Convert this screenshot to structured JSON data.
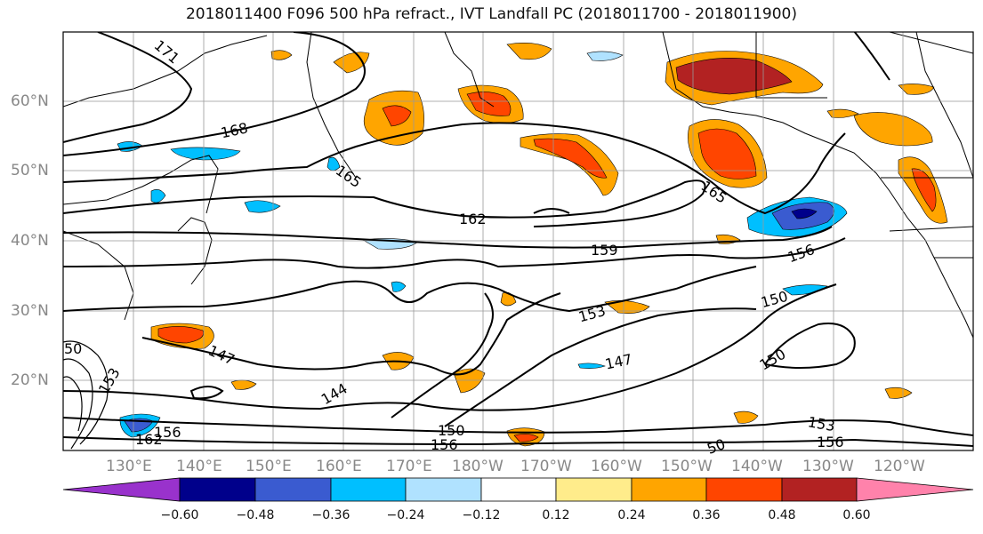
{
  "title": "2018011400 F096 500 hPa refract., IVT Landfall PC (2018011700 - 2018011900)",
  "axes": {
    "lat_labels": [
      "60°N",
      "50°N",
      "40°N",
      "30°N",
      "20°N"
    ],
    "lon_labels": [
      "130°E",
      "140°E",
      "150°E",
      "160°E",
      "170°E",
      "180°W",
      "170°W",
      "160°W",
      "150°W",
      "140°W",
      "130°W",
      "120°W"
    ]
  },
  "contour_labels": [
    "171",
    "168",
    "165",
    "162",
    "159",
    "156",
    "165",
    "153",
    "150",
    "147",
    "147",
    "144",
    "150",
    "156",
    "153",
    "156",
    "150",
    "162",
    "156",
    "153",
    "50",
    "50"
  ],
  "colorbar": {
    "ticks": [
      "−0.60",
      "−0.48",
      "−0.36",
      "−0.24",
      "−0.12",
      "0.12",
      "0.24",
      "0.36",
      "0.48",
      "0.60"
    ],
    "colors": [
      "#9932cc",
      "#00008b",
      "#3a5bd0",
      "#00bfff",
      "#b0e2ff",
      "#ffffff",
      "#ffec8b",
      "#ffa500",
      "#ff4500",
      "#b22222",
      "#ff82ab"
    ]
  }
}
